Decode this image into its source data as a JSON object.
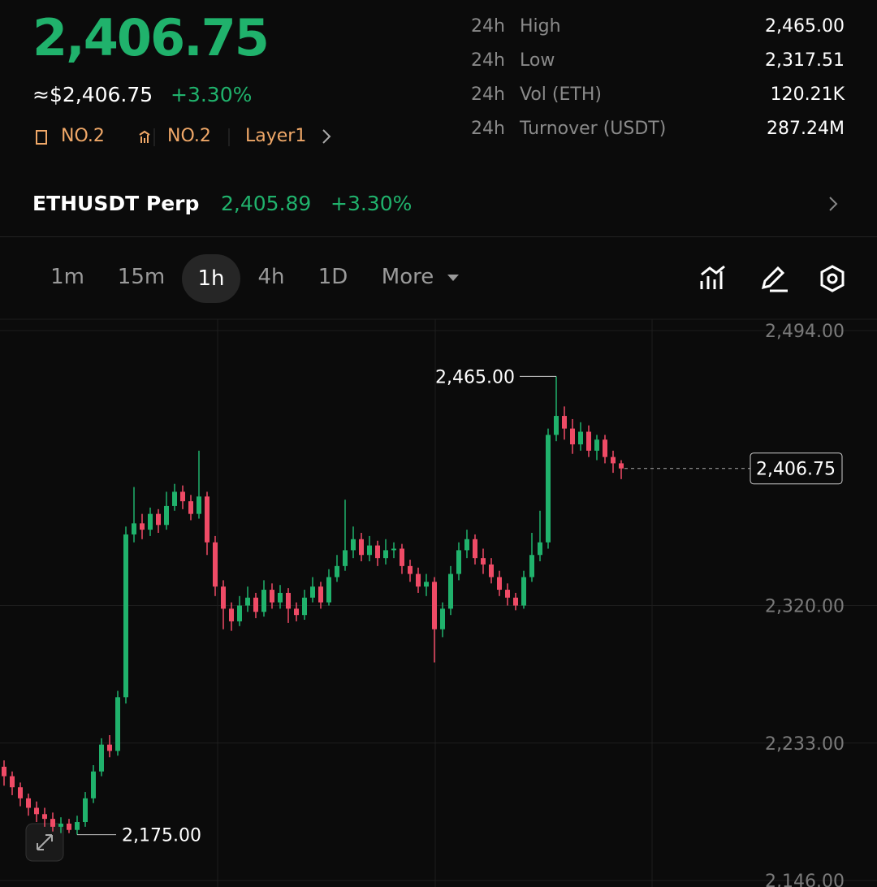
{
  "header": {
    "price": "2,406.75",
    "usd_price": "≈$2,406.75",
    "change": "+3.30%",
    "tags": [
      "NO.2",
      "NO.2",
      "Layer1"
    ],
    "stats": [
      {
        "period": "24h",
        "label": "High",
        "value": "2,465.00"
      },
      {
        "period": "24h",
        "label": "Low",
        "value": "2,317.51"
      },
      {
        "period": "24h",
        "label": "Vol (ETH)",
        "value": "120.21K"
      },
      {
        "period": "24h",
        "label": "Turnover (USDT)",
        "value": "287.24M"
      }
    ]
  },
  "perp": {
    "name": "ETHUSDT Perp",
    "price": "2,405.89",
    "change": "+3.30%"
  },
  "tabs": [
    "1m",
    "15m",
    "1h",
    "4h",
    "1D",
    "More"
  ],
  "active_tab": "1h",
  "chart_data": {
    "type": "candlestick",
    "open": [
      2218,
      2212,
      2205,
      2198,
      2192,
      2188,
      2185,
      2180,
      2182,
      2178,
      2183,
      2198,
      2215,
      2232,
      2228,
      2262,
      2365,
      2372,
      2368,
      2378,
      2371,
      2383,
      2392,
      2386,
      2378,
      2389,
      2360,
      2332,
      2318,
      2310,
      2320,
      2325,
      2316,
      2330,
      2322,
      2328,
      2318,
      2314,
      2325,
      2332,
      2322,
      2338,
      2345,
      2355,
      2362,
      2352,
      2358,
      2350,
      2355,
      2356,
      2345,
      2340,
      2332,
      2335,
      2305,
      2318,
      2340,
      2355,
      2362,
      2350,
      2346,
      2338,
      2330,
      2325,
      2320,
      2338,
      2352,
      2360,
      2428,
      2440,
      2432,
      2422,
      2430,
      2418,
      2425,
      2414,
      2410
    ],
    "high": [
      2222,
      2215,
      2208,
      2201,
      2196,
      2192,
      2189,
      2186,
      2185,
      2187,
      2202,
      2219,
      2236,
      2238,
      2266,
      2370,
      2395,
      2378,
      2382,
      2381,
      2392,
      2397,
      2396,
      2390,
      2418,
      2392,
      2364,
      2336,
      2322,
      2326,
      2332,
      2328,
      2336,
      2334,
      2333,
      2331,
      2322,
      2330,
      2338,
      2335,
      2343,
      2352,
      2387,
      2370,
      2366,
      2364,
      2361,
      2362,
      2360,
      2359,
      2349,
      2344,
      2340,
      2338,
      2322,
      2345,
      2360,
      2368,
      2365,
      2356,
      2350,
      2342,
      2334,
      2328,
      2342,
      2366,
      2380,
      2432,
      2465,
      2446,
      2438,
      2436,
      2434,
      2428,
      2428,
      2418,
      2412
    ],
    "low": [
      2206,
      2200,
      2193,
      2187,
      2183,
      2180,
      2177,
      2176,
      2176,
      2175,
      2180,
      2195,
      2212,
      2224,
      2225,
      2258,
      2360,
      2362,
      2364,
      2366,
      2368,
      2380,
      2381,
      2374,
      2375,
      2352,
      2326,
      2305,
      2304,
      2307,
      2316,
      2312,
      2313,
      2318,
      2318,
      2309,
      2310,
      2311,
      2322,
      2318,
      2320,
      2335,
      2342,
      2350,
      2348,
      2348,
      2345,
      2346,
      2350,
      2340,
      2335,
      2328,
      2326,
      2284,
      2300,
      2314,
      2336,
      2350,
      2346,
      2340,
      2334,
      2326,
      2320,
      2317,
      2318,
      2335,
      2348,
      2356,
      2424,
      2425,
      2416,
      2418,
      2414,
      2412,
      2410,
      2404,
      2400
    ],
    "close": [
      2212,
      2205,
      2198,
      2192,
      2188,
      2185,
      2180,
      2182,
      2178,
      2183,
      2198,
      2215,
      2232,
      2228,
      2262,
      2365,
      2372,
      2368,
      2378,
      2371,
      2383,
      2392,
      2386,
      2378,
      2389,
      2360,
      2332,
      2318,
      2310,
      2320,
      2325,
      2316,
      2330,
      2322,
      2328,
      2318,
      2314,
      2325,
      2332,
      2322,
      2338,
      2345,
      2355,
      2362,
      2352,
      2358,
      2350,
      2355,
      2356,
      2345,
      2340,
      2332,
      2335,
      2305,
      2318,
      2340,
      2355,
      2362,
      2350,
      2346,
      2338,
      2330,
      2325,
      2320,
      2338,
      2352,
      2360,
      2428,
      2440,
      2432,
      2422,
      2430,
      2418,
      2425,
      2414,
      2410,
      2406.75
    ],
    "up_color": "#20b26c",
    "down_color": "#ef4b66",
    "ylim": [
      2146,
      2494
    ],
    "yticks": [
      {
        "value": 2494,
        "label": "2,494.00"
      },
      {
        "value": 2320,
        "label": "2,320.00"
      },
      {
        "value": 2233,
        "label": "2,233.00"
      },
      {
        "value": 2146,
        "label": "2,146.00"
      }
    ],
    "grid": true,
    "high_marker": {
      "value": 2465,
      "label": "2,465.00"
    },
    "low_marker": {
      "value": 2175,
      "label": "2,175.00"
    },
    "last_price": {
      "value": 2406.75,
      "label": "2,406.75"
    }
  }
}
